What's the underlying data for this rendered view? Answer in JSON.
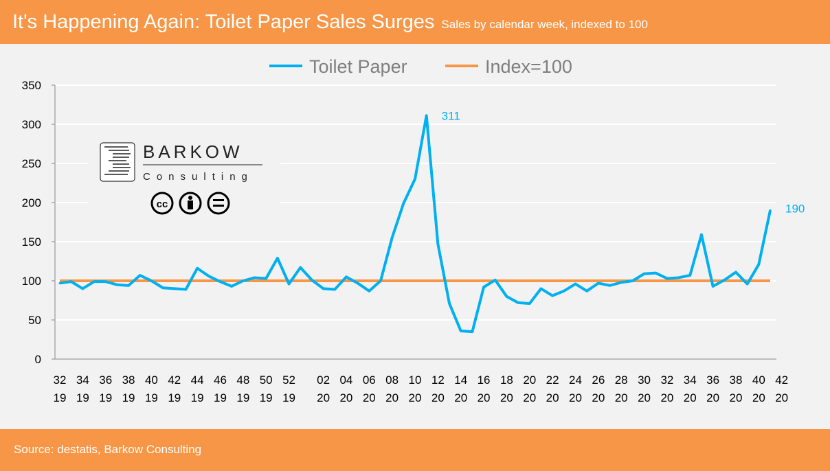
{
  "header": {
    "title": "It's Happening Again: Toilet Paper Sales Surges",
    "subtitle": "Sales by calendar week, indexed to 100"
  },
  "footer": {
    "source": "Source: destatis, Barkow Consulting"
  },
  "logo": {
    "name": "BARKOW",
    "tagline": "Consulting",
    "license": "CC BY-ND"
  },
  "colors": {
    "toilet_paper": "#00b0f0",
    "index": "#f79646",
    "header": "#f79646"
  },
  "chart_data": {
    "type": "line",
    "ylim": [
      0,
      350
    ],
    "yticks": [
      0,
      50,
      100,
      150,
      200,
      250,
      300,
      350
    ],
    "grid": true,
    "legend_placement": "top",
    "x_tick_labels": [
      [
        "32",
        "19"
      ],
      [
        "34",
        "19"
      ],
      [
        "36",
        "19"
      ],
      [
        "38",
        "19"
      ],
      [
        "40",
        "19"
      ],
      [
        "42",
        "19"
      ],
      [
        "44",
        "19"
      ],
      [
        "46",
        "19"
      ],
      [
        "48",
        "19"
      ],
      [
        "50",
        "19"
      ],
      [
        "52",
        "19"
      ],
      [
        "02",
        "20"
      ],
      [
        "04",
        "20"
      ],
      [
        "06",
        "20"
      ],
      [
        "08",
        "20"
      ],
      [
        "10",
        "20"
      ],
      [
        "12",
        "20"
      ],
      [
        "14",
        "20"
      ],
      [
        "16",
        "20"
      ],
      [
        "18",
        "20"
      ],
      [
        "20",
        "20"
      ],
      [
        "22",
        "20"
      ],
      [
        "24",
        "20"
      ],
      [
        "26",
        "20"
      ],
      [
        "28",
        "20"
      ],
      [
        "30",
        "20"
      ],
      [
        "32",
        "20"
      ],
      [
        "34",
        "20"
      ],
      [
        "36",
        "20"
      ],
      [
        "38",
        "20"
      ],
      [
        "40",
        "20"
      ],
      [
        "42",
        "20"
      ]
    ],
    "x": [
      "32/19",
      "33/19",
      "34/19",
      "35/19",
      "36/19",
      "37/19",
      "38/19",
      "39/19",
      "40/19",
      "41/19",
      "42/19",
      "43/19",
      "44/19",
      "45/19",
      "46/19",
      "47/19",
      "48/19",
      "49/19",
      "50/19",
      "51/19",
      "52/19",
      "01/20",
      "02/20",
      "03/20",
      "04/20",
      "05/20",
      "06/20",
      "07/20",
      "08/20",
      "09/20",
      "10/20",
      "11/20",
      "12/20",
      "13/20",
      "14/20",
      "15/20",
      "16/20",
      "17/20",
      "18/20",
      "19/20",
      "20/20",
      "21/20",
      "22/20",
      "23/20",
      "24/20",
      "25/20",
      "26/20",
      "27/20",
      "28/20",
      "29/20",
      "30/20",
      "31/20",
      "32/20",
      "33/20",
      "34/20",
      "35/20",
      "36/20",
      "37/20",
      "38/20",
      "39/20",
      "40/20",
      "41/20",
      "42/20"
    ],
    "series": [
      {
        "name": "Toilet Paper",
        "values": [
          97,
          99,
          90,
          99,
          99,
          95,
          94,
          107,
          100,
          91,
          90,
          89,
          116,
          106,
          99,
          93,
          100,
          104,
          103,
          129,
          96,
          117,
          101,
          90,
          89,
          105,
          97,
          87,
          100,
          155,
          199,
          230,
          311,
          147,
          71,
          36,
          35,
          92,
          101,
          80,
          72,
          71,
          90,
          81,
          87,
          96,
          87,
          97,
          94,
          98,
          100,
          109,
          110,
          103,
          104,
          107,
          159,
          93,
          101,
          111,
          96,
          121,
          190
        ]
      },
      {
        "name": "Index=100",
        "constant": 100
      }
    ],
    "annotations": [
      {
        "x": "12/20",
        "text": "311"
      },
      {
        "x": "42/20",
        "text": "190"
      }
    ]
  }
}
